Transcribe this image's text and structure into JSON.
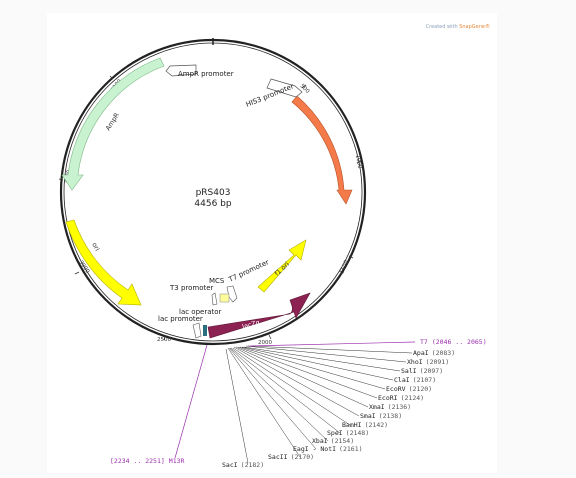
{
  "credit": {
    "prefix": "Created with ",
    "brand": "SnapGene®"
  },
  "map": {
    "name": "pRS403",
    "length": "4456 bp",
    "ticks": [
      "500",
      "1000",
      "1500",
      "2000",
      "2500",
      "3000",
      "3500",
      "4000"
    ],
    "features": [
      {
        "label": "HIS3",
        "color": "#f47a4a"
      },
      {
        "label": "HIS3 promoter",
        "color": "#ffffff"
      },
      {
        "label": "AmpR promoter",
        "color": "#ffffff"
      },
      {
        "label": "AmpR",
        "color": "#c9f2d0"
      },
      {
        "label": "ori",
        "color": "#ffff00"
      },
      {
        "label": "f1 ori",
        "color": "#ffff00"
      },
      {
        "label": "lacZα",
        "color": "#8b2252"
      },
      {
        "label": "T7 promoter",
        "color": "#ffffff"
      },
      {
        "label": "MCS",
        "color": "#ffff99"
      },
      {
        "label": "T3 promoter",
        "color": "#ffffff"
      },
      {
        "label": "lac operator",
        "color": "#ffffff"
      },
      {
        "label": "lac promoter",
        "color": "#ffffff"
      }
    ],
    "primers": [
      {
        "label": "T7",
        "range": "(2046 .. 2065)"
      },
      {
        "label": "M13R",
        "range": "[2234 .. 2251]"
      }
    ],
    "sites": [
      {
        "name": "ApaI",
        "pos": "(2083)"
      },
      {
        "name": "XhoI",
        "pos": "(2091)"
      },
      {
        "name": "SalI",
        "pos": "(2097)"
      },
      {
        "name": "ClaI",
        "pos": "(2107)"
      },
      {
        "name": "EcoRV",
        "pos": "(2120)"
      },
      {
        "name": "EcoRI",
        "pos": "(2124)"
      },
      {
        "name": "XmaI",
        "pos": "(2136)"
      },
      {
        "name": "SmaI",
        "pos": "(2138)"
      },
      {
        "name": "BamHI",
        "pos": "(2142)"
      },
      {
        "name": "SpeI",
        "pos": "(2148)"
      },
      {
        "name": "XbaI",
        "pos": "(2154)"
      },
      {
        "name": "EagI - NotI",
        "pos": "(2161)"
      },
      {
        "name": "SacII",
        "pos": "(2170)"
      },
      {
        "name": "SacI",
        "pos": "(2182)"
      }
    ]
  }
}
